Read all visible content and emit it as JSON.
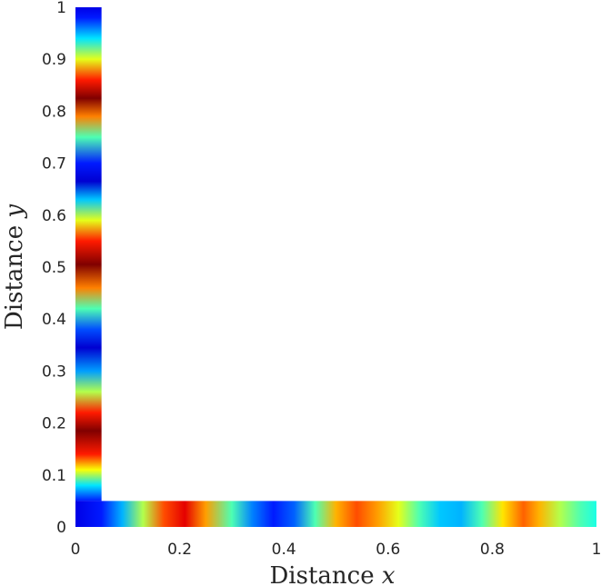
{
  "chart_data": {
    "type": "heatmap",
    "title": "",
    "xlabel": "Distance",
    "xlabel_var": "x",
    "ylabel": "Distance",
    "ylabel_var": "y",
    "xlim": [
      0,
      1
    ],
    "ylim": [
      0,
      1
    ],
    "grid": false,
    "colormap": "jet",
    "x_ticks": [
      {
        "value": 0,
        "label": "0"
      },
      {
        "value": 0.2,
        "label": "0.2"
      },
      {
        "value": 0.4,
        "label": "0.4"
      },
      {
        "value": 0.6,
        "label": "0.6"
      },
      {
        "value": 0.8,
        "label": "0.8"
      },
      {
        "value": 1,
        "label": "1"
      }
    ],
    "y_ticks": [
      {
        "value": 0,
        "label": "0"
      },
      {
        "value": 0.1,
        "label": "0.1"
      },
      {
        "value": 0.2,
        "label": "0.2"
      },
      {
        "value": 0.3,
        "label": "0.3"
      },
      {
        "value": 0.4,
        "label": "0.4"
      },
      {
        "value": 0.5,
        "label": "0.5"
      },
      {
        "value": 0.6,
        "label": "0.6"
      },
      {
        "value": 0.7,
        "label": "0.7"
      },
      {
        "value": 0.8,
        "label": "0.8"
      },
      {
        "value": 0.9,
        "label": "0.9"
      },
      {
        "value": 1,
        "label": "1"
      }
    ],
    "regions": [
      {
        "name": "vertical-arm",
        "x_range": [
          0,
          0.05
        ],
        "y_range": [
          0.05,
          1
        ],
        "gradient_axis": "y",
        "color_stops": [
          {
            "pos": 0.05,
            "level": 0.15
          },
          {
            "pos": 0.08,
            "level": 0.35
          },
          {
            "pos": 0.11,
            "level": 0.62
          },
          {
            "pos": 0.14,
            "level": 0.85
          },
          {
            "pos": 0.185,
            "level": 1.0
          },
          {
            "pos": 0.22,
            "level": 0.85
          },
          {
            "pos": 0.26,
            "level": 0.55
          },
          {
            "pos": 0.3,
            "level": 0.28
          },
          {
            "pos": 0.345,
            "level": 0.08
          },
          {
            "pos": 0.38,
            "level": 0.2
          },
          {
            "pos": 0.42,
            "level": 0.45
          },
          {
            "pos": 0.46,
            "level": 0.75
          },
          {
            "pos": 0.505,
            "level": 1.0
          },
          {
            "pos": 0.55,
            "level": 0.85
          },
          {
            "pos": 0.59,
            "level": 0.6
          },
          {
            "pos": 0.63,
            "level": 0.32
          },
          {
            "pos": 0.665,
            "level": 0.08
          },
          {
            "pos": 0.7,
            "level": 0.15
          },
          {
            "pos": 0.75,
            "level": 0.45
          },
          {
            "pos": 0.79,
            "level": 0.75
          },
          {
            "pos": 0.825,
            "level": 1.0
          },
          {
            "pos": 0.86,
            "level": 0.85
          },
          {
            "pos": 0.9,
            "level": 0.6
          },
          {
            "pos": 0.94,
            "level": 0.35
          },
          {
            "pos": 0.98,
            "level": 0.15
          },
          {
            "pos": 1.0,
            "level": 0.1
          }
        ]
      },
      {
        "name": "horizontal-arm",
        "x_range": [
          0,
          1
        ],
        "y_range": [
          0,
          0.05
        ],
        "gradient_axis": "x",
        "color_stops": [
          {
            "pos": 0.0,
            "level": 0.1
          },
          {
            "pos": 0.05,
            "level": 0.15
          },
          {
            "pos": 0.09,
            "level": 0.3
          },
          {
            "pos": 0.13,
            "level": 0.55
          },
          {
            "pos": 0.17,
            "level": 0.8
          },
          {
            "pos": 0.21,
            "level": 0.9
          },
          {
            "pos": 0.25,
            "level": 0.72
          },
          {
            "pos": 0.3,
            "level": 0.45
          },
          {
            "pos": 0.34,
            "level": 0.25
          },
          {
            "pos": 0.38,
            "level": 0.15
          },
          {
            "pos": 0.42,
            "level": 0.22
          },
          {
            "pos": 0.46,
            "level": 0.45
          },
          {
            "pos": 0.5,
            "level": 0.7
          },
          {
            "pos": 0.54,
            "level": 0.8
          },
          {
            "pos": 0.58,
            "level": 0.72
          },
          {
            "pos": 0.62,
            "level": 0.6
          },
          {
            "pos": 0.66,
            "level": 0.45
          },
          {
            "pos": 0.7,
            "level": 0.32
          },
          {
            "pos": 0.74,
            "level": 0.3
          },
          {
            "pos": 0.78,
            "level": 0.45
          },
          {
            "pos": 0.82,
            "level": 0.65
          },
          {
            "pos": 0.86,
            "level": 0.78
          },
          {
            "pos": 0.89,
            "level": 0.7
          },
          {
            "pos": 0.93,
            "level": 0.55
          },
          {
            "pos": 0.97,
            "level": 0.45
          },
          {
            "pos": 1.0,
            "level": 0.4
          }
        ]
      }
    ]
  }
}
